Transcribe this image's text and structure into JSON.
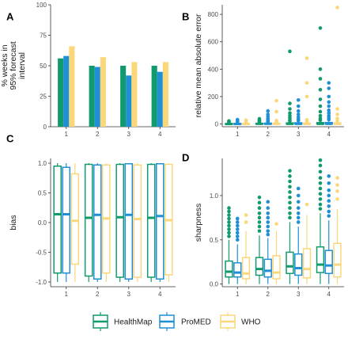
{
  "colors": {
    "HealthMap": "#109a6e",
    "ProMED": "#1f8fd6",
    "WHO": "#fad77a"
  },
  "legend": [
    "HealthMap",
    "ProMED",
    "WHO"
  ],
  "chart_data": [
    {
      "panel": "A",
      "type": "bar",
      "ylabel": [
        "% weeks in",
        "95% forecast",
        "interval"
      ],
      "categories": [
        "1",
        "2",
        "3",
        "4"
      ],
      "ylim": [
        0,
        100
      ],
      "yticks": [
        0,
        25,
        50,
        75,
        100
      ],
      "series": [
        {
          "name": "HealthMap",
          "values": [
            56,
            50,
            50,
            50
          ]
        },
        {
          "name": "ProMED",
          "values": [
            58,
            49,
            42,
            45
          ]
        },
        {
          "name": "WHO",
          "values": [
            66,
            57,
            53,
            53
          ]
        }
      ]
    },
    {
      "panel": "B",
      "type": "box",
      "ylabel": [
        "relative mean absolute error"
      ],
      "categories": [
        "1",
        "2",
        "3",
        "4"
      ],
      "ylim": [
        -20,
        870
      ],
      "yticks": [
        0,
        200,
        400,
        600,
        800
      ],
      "series": [
        {
          "name": "HealthMap",
          "boxes": [
            {
              "q1": 0,
              "med": 0,
              "q3": 3,
              "lo": 0,
              "hi": 7,
              "out": [
                10,
                14,
                18,
                22
              ]
            },
            {
              "q1": 0,
              "med": 1,
              "q3": 5,
              "lo": 0,
              "hi": 10,
              "out": [
                14,
                18,
                24,
                30,
                38
              ]
            },
            {
              "q1": 0,
              "med": 1,
              "q3": 8,
              "lo": 0,
              "hi": 18,
              "out": [
                22,
                30,
                45,
                60,
                80,
                110,
                150,
                530
              ]
            },
            {
              "q1": 0,
              "med": 1,
              "q3": 10,
              "lo": 0,
              "hi": 22,
              "out": [
                28,
                40,
                60,
                90,
                130,
                180,
                250,
                330,
                400,
                700
              ]
            }
          ]
        },
        {
          "name": "ProMED",
          "boxes": [
            {
              "q1": 0,
              "med": 0,
              "q3": 4,
              "lo": 0,
              "hi": 8,
              "out": [
                12,
                16,
                20,
                26,
                32
              ]
            },
            {
              "q1": 0,
              "med": 1,
              "q3": 6,
              "lo": 0,
              "hi": 12,
              "out": [
                16,
                22,
                30,
                40,
                55,
                70,
                95
              ]
            },
            {
              "q1": 0,
              "med": 1,
              "q3": 9,
              "lo": 0,
              "hi": 20,
              "out": [
                25,
                35,
                50,
                70,
                95,
                130,
                175
              ]
            },
            {
              "q1": 0,
              "med": 1,
              "q3": 11,
              "lo": 0,
              "hi": 25,
              "out": [
                32,
                45,
                60,
                80,
                100,
                130,
                160,
                200,
                260,
                300
              ]
            }
          ]
        },
        {
          "name": "WHO",
          "boxes": [
            {
              "q1": 0,
              "med": 0,
              "q3": 3,
              "lo": 0,
              "hi": 7,
              "out": [
                10,
                16,
                22,
                28
              ]
            },
            {
              "q1": 0,
              "med": 1,
              "q3": 5,
              "lo": 0,
              "hi": 11,
              "out": [
                16,
                25,
                90,
                170
              ]
            },
            {
              "q1": 0,
              "med": 1,
              "q3": 6,
              "lo": 0,
              "hi": 14,
              "out": [
                20,
                30,
                200,
                300,
                480
              ]
            },
            {
              "q1": 0,
              "med": 1,
              "q3": 8,
              "lo": 0,
              "hi": 18,
              "out": [
                25,
                40,
                70,
                110,
                850
              ]
            }
          ]
        }
      ]
    },
    {
      "panel": "C",
      "type": "box",
      "ylabel": [
        "bias"
      ],
      "categories": [
        "1",
        "2",
        "3",
        "4"
      ],
      "ylim": [
        -1.08,
        1.08
      ],
      "yticks": [
        -1.0,
        -0.5,
        0.0,
        0.5,
        1.0
      ],
      "ytick_labels": [
        "-1.0",
        "-0.5",
        "0.0",
        "0.5",
        "1.0"
      ],
      "series": [
        {
          "name": "HealthMap",
          "boxes": [
            {
              "q1": -0.85,
              "med": 0.14,
              "q3": 0.95,
              "lo": -1,
              "hi": 1,
              "out": []
            },
            {
              "q1": -0.9,
              "med": 0.08,
              "q3": 0.98,
              "lo": -1,
              "hi": 1,
              "out": []
            },
            {
              "q1": -0.92,
              "med": 0.09,
              "q3": 0.98,
              "lo": -1,
              "hi": 1,
              "out": []
            },
            {
              "q1": -0.92,
              "med": 0.08,
              "q3": 0.98,
              "lo": -1,
              "hi": 1,
              "out": []
            }
          ]
        },
        {
          "name": "ProMED",
          "boxes": [
            {
              "q1": -0.85,
              "med": 0.14,
              "q3": 0.93,
              "lo": -1,
              "hi": 1,
              "out": []
            },
            {
              "q1": -0.95,
              "med": 0.13,
              "q3": 0.97,
              "lo": -1,
              "hi": 1,
              "out": []
            },
            {
              "q1": -0.95,
              "med": 0.13,
              "q3": 0.99,
              "lo": -1,
              "hi": 1,
              "out": []
            },
            {
              "q1": -0.95,
              "med": 0.11,
              "q3": 0.99,
              "lo": -1,
              "hi": 1,
              "out": []
            }
          ]
        },
        {
          "name": "WHO",
          "boxes": [
            {
              "q1": -0.7,
              "med": 0.03,
              "q3": 0.82,
              "lo": -1,
              "hi": 1,
              "out": []
            },
            {
              "q1": -0.85,
              "med": 0.07,
              "q3": 0.97,
              "lo": -1,
              "hi": 1,
              "out": []
            },
            {
              "q1": -0.92,
              "med": 0.06,
              "q3": 0.97,
              "lo": -1,
              "hi": 1,
              "out": []
            },
            {
              "q1": -0.88,
              "med": 0.04,
              "q3": 0.98,
              "lo": -1,
              "hi": 1,
              "out": []
            }
          ]
        }
      ]
    },
    {
      "panel": "D",
      "type": "box",
      "ylabel": [
        "sharpness"
      ],
      "categories": [
        "1",
        "2",
        "3",
        "4"
      ],
      "ylim": [
        -0.03,
        1.42
      ],
      "yticks": [
        0.0,
        0.5,
        1.0
      ],
      "ytick_labels": [
        "0.0",
        "0.5",
        "1.0"
      ],
      "series": [
        {
          "name": "HealthMap",
          "boxes": [
            {
              "q1": 0.08,
              "med": 0.14,
              "q3": 0.26,
              "lo": 0.0,
              "hi": 0.5,
              "out": [
                0.54,
                0.58,
                0.62,
                0.66,
                0.7,
                0.74,
                0.78,
                0.82,
                0.86
              ]
            },
            {
              "q1": 0.1,
              "med": 0.17,
              "q3": 0.3,
              "lo": 0.0,
              "hi": 0.55,
              "out": [
                0.6,
                0.65,
                0.7,
                0.75,
                0.8,
                0.86,
                0.92,
                0.98
              ]
            },
            {
              "q1": 0.12,
              "med": 0.2,
              "q3": 0.36,
              "lo": 0.0,
              "hi": 0.7,
              "out": [
                0.75,
                0.8,
                0.86,
                0.92,
                0.98,
                1.04,
                1.1,
                1.16,
                1.22,
                1.28
              ]
            },
            {
              "q1": 0.13,
              "med": 0.22,
              "q3": 0.42,
              "lo": 0.0,
              "hi": 0.8,
              "out": [
                0.85,
                0.9,
                0.96,
                1.02,
                1.08,
                1.14,
                1.2,
                1.27,
                1.34,
                1.4
              ]
            }
          ]
        },
        {
          "name": "ProMED",
          "boxes": [
            {
              "q1": 0.08,
              "med": 0.13,
              "q3": 0.24,
              "lo": 0.0,
              "hi": 0.45,
              "out": [
                0.5,
                0.54,
                0.58,
                0.62,
                0.66,
                0.7,
                0.74
              ]
            },
            {
              "q1": 0.08,
              "med": 0.15,
              "q3": 0.28,
              "lo": 0.0,
              "hi": 0.52,
              "out": [
                0.56,
                0.6,
                0.65,
                0.7,
                0.75,
                0.8,
                0.86,
                0.93
              ]
            },
            {
              "q1": 0.1,
              "med": 0.18,
              "q3": 0.34,
              "lo": 0.0,
              "hi": 0.65,
              "out": [
                0.7,
                0.75,
                0.8,
                0.86,
                0.93,
                1.0,
                1.08
              ]
            },
            {
              "q1": 0.12,
              "med": 0.21,
              "q3": 0.38,
              "lo": 0.0,
              "hi": 0.72,
              "out": [
                0.77,
                0.82,
                0.88,
                0.94,
                1.0,
                1.06,
                1.14,
                1.22
              ]
            }
          ]
        },
        {
          "name": "WHO",
          "boxes": [
            {
              "q1": 0.06,
              "med": 0.12,
              "q3": 0.3,
              "lo": 0.0,
              "hi": 0.6,
              "out": [
                0.7,
                0.78
              ]
            },
            {
              "q1": 0.06,
              "med": 0.13,
              "q3": 0.32,
              "lo": 0.0,
              "hi": 0.6,
              "out": [
                0.68
              ]
            },
            {
              "q1": 0.07,
              "med": 0.17,
              "q3": 0.4,
              "lo": 0.0,
              "hi": 0.78,
              "out": [
                0.9
              ]
            },
            {
              "q1": 0.08,
              "med": 0.22,
              "q3": 0.46,
              "lo": 0.0,
              "hi": 0.85,
              "out": [
                0.96,
                1.05,
                1.12,
                1.2
              ]
            }
          ]
        }
      ]
    }
  ]
}
